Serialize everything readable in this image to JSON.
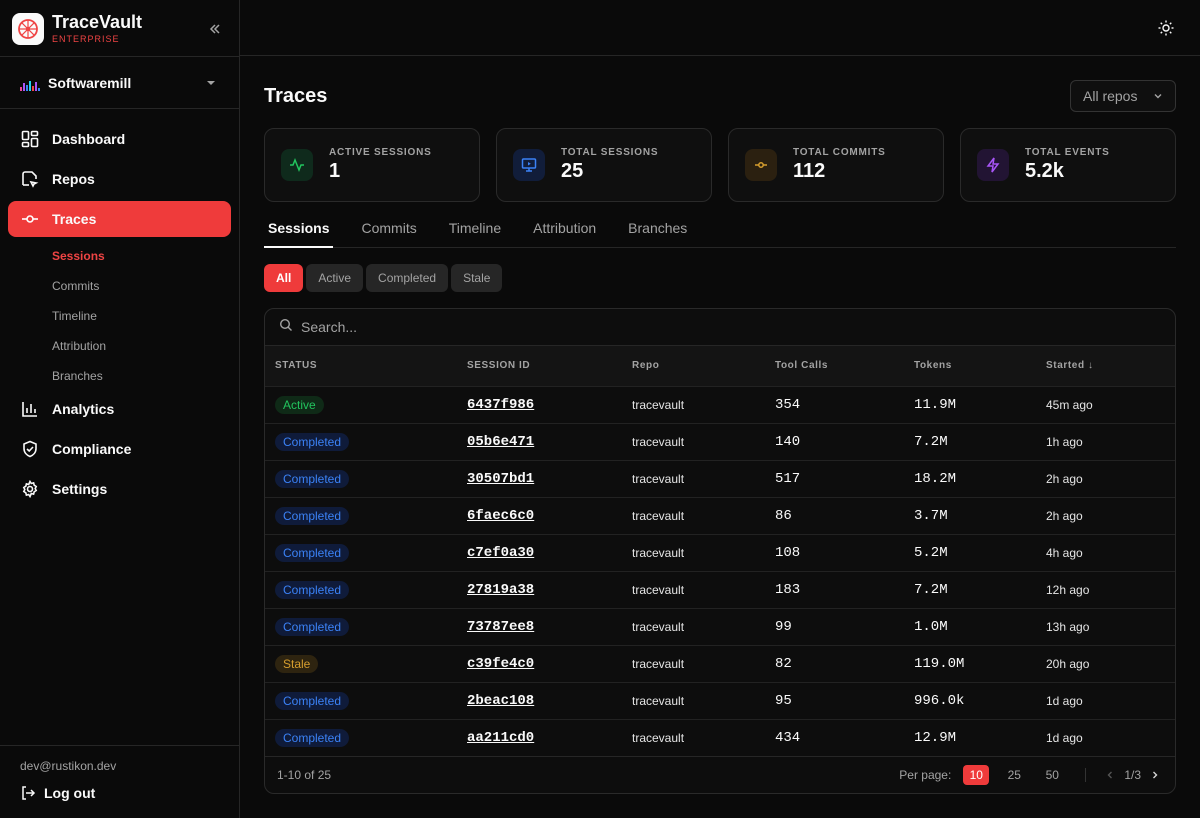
{
  "brand": {
    "name": "TraceVault",
    "edition": "ENTERPRISE"
  },
  "org": {
    "name": "Softwaremill"
  },
  "nav": {
    "dashboard": "Dashboard",
    "repos": "Repos",
    "traces": "Traces",
    "analytics": "Analytics",
    "compliance": "Compliance",
    "settings": "Settings",
    "sub": [
      "Sessions",
      "Commits",
      "Timeline",
      "Attribution",
      "Branches"
    ]
  },
  "user": {
    "email": "dev@rustikon.dev",
    "logout": "Log out"
  },
  "page": {
    "title": "Traces",
    "repo_filter": "All repos"
  },
  "stats": [
    {
      "label": "ACTIVE SESSIONS",
      "value": "1",
      "color": "#22c55e"
    },
    {
      "label": "TOTAL SESSIONS",
      "value": "25",
      "color": "#3b82f6"
    },
    {
      "label": "TOTAL COMMITS",
      "value": "112",
      "color": "#d69e2e"
    },
    {
      "label": "TOTAL EVENTS",
      "value": "5.2k",
      "color": "#a855f7"
    }
  ],
  "tabs": [
    "Sessions",
    "Commits",
    "Timeline",
    "Attribution",
    "Branches"
  ],
  "filters": [
    "All",
    "Active",
    "Completed",
    "Stale"
  ],
  "search": {
    "placeholder": "Search..."
  },
  "table": {
    "headers": {
      "status": "STATUS",
      "session_id": "SESSION ID",
      "repo": "Repo",
      "tool_calls": "Tool Calls",
      "tokens": "Tokens",
      "started": "Started ↓"
    },
    "rows": [
      {
        "status": "Active",
        "kind": "active",
        "id": "6437f986",
        "repo": "tracevault",
        "tool_calls": "354",
        "tokens": "11.9M",
        "started": "45m ago"
      },
      {
        "status": "Completed",
        "kind": "completed",
        "id": "05b6e471",
        "repo": "tracevault",
        "tool_calls": "140",
        "tokens": "7.2M",
        "started": "1h ago"
      },
      {
        "status": "Completed",
        "kind": "completed",
        "id": "30507bd1",
        "repo": "tracevault",
        "tool_calls": "517",
        "tokens": "18.2M",
        "started": "2h ago"
      },
      {
        "status": "Completed",
        "kind": "completed",
        "id": "6faec6c0",
        "repo": "tracevault",
        "tool_calls": "86",
        "tokens": "3.7M",
        "started": "2h ago"
      },
      {
        "status": "Completed",
        "kind": "completed",
        "id": "c7ef0a30",
        "repo": "tracevault",
        "tool_calls": "108",
        "tokens": "5.2M",
        "started": "4h ago"
      },
      {
        "status": "Completed",
        "kind": "completed",
        "id": "27819a38",
        "repo": "tracevault",
        "tool_calls": "183",
        "tokens": "7.2M",
        "started": "12h ago"
      },
      {
        "status": "Completed",
        "kind": "completed",
        "id": "73787ee8",
        "repo": "tracevault",
        "tool_calls": "99",
        "tokens": "1.0M",
        "started": "13h ago"
      },
      {
        "status": "Stale",
        "kind": "stale",
        "id": "c39fe4c0",
        "repo": "tracevault",
        "tool_calls": "82",
        "tokens": "119.0M",
        "started": "20h ago"
      },
      {
        "status": "Completed",
        "kind": "completed",
        "id": "2beac108",
        "repo": "tracevault",
        "tool_calls": "95",
        "tokens": "996.0k",
        "started": "1d ago"
      },
      {
        "status": "Completed",
        "kind": "completed",
        "id": "aa211cd0",
        "repo": "tracevault",
        "tool_calls": "434",
        "tokens": "12.9M",
        "started": "1d ago"
      }
    ]
  },
  "pagination": {
    "range": "1-10 of 25",
    "per_page_label": "Per page:",
    "options": [
      "10",
      "25",
      "50"
    ],
    "page": "1/3"
  }
}
